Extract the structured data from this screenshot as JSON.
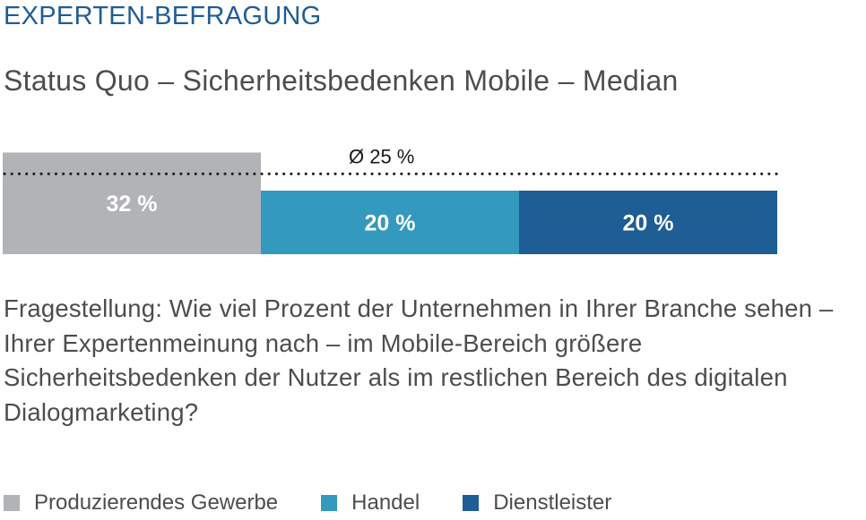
{
  "header": {
    "kicker": "EXPERTEN-BEFRAGUNG",
    "title": "Status Quo – Sicherheitsbedenken Mobile – Median"
  },
  "question": "Fragestellung: Wie viel Prozent der Unternehmen in Ihrer Branche sehen – Ihrer Expertenmeinung nach – im Mobile-Bereich größere Sicherheitsbedenken der Nutzer als im restlichen Bereich des digitalen Dialogmarketing?",
  "chart_data": {
    "type": "bar",
    "categories": [
      "Produzierendes Gewerbe",
      "Handel",
      "Dienstleister"
    ],
    "values": [
      32,
      20,
      20
    ],
    "value_labels": [
      "32 %",
      "20 %",
      "20 %"
    ],
    "colors": [
      "#b1b3b6",
      "#3399bf",
      "#1f5d95"
    ],
    "average": 25,
    "average_label": "Ø 25 %",
    "unit": "%",
    "legend_position": "bottom",
    "grid": false
  },
  "legend": {
    "items": [
      {
        "label": "Produzierendes Gewerbe",
        "color": "#b1b3b6"
      },
      {
        "label": "Handel",
        "color": "#3399bf"
      },
      {
        "label": "Dienstleister",
        "color": "#1f5d95"
      }
    ]
  }
}
